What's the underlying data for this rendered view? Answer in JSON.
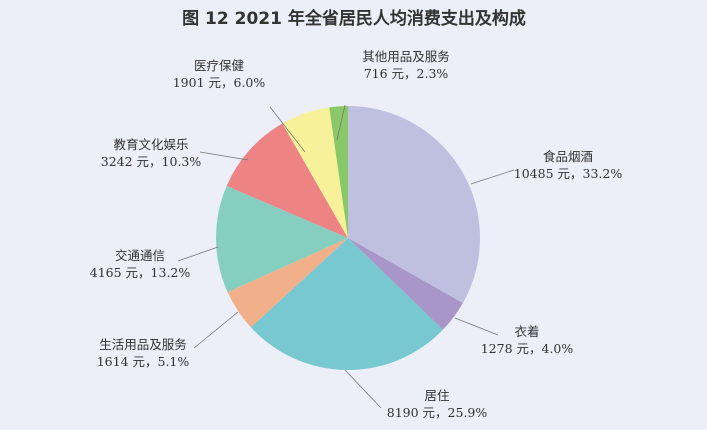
{
  "chart_data": {
    "type": "pie",
    "title": "图 12   2021 年全省居民人均消费支出及构成",
    "unit": "元",
    "start": "top",
    "direction": "clockwise",
    "slices": [
      {
        "name": "食品烟酒",
        "value": 10485,
        "percent": 33.2,
        "label": "10485 元，33.2%",
        "color": "#bfc0e0"
      },
      {
        "name": "衣着",
        "value": 1278,
        "percent": 4.0,
        "label": "1278 元，4.0%",
        "color": "#a896c8"
      },
      {
        "name": "居住",
        "value": 8190,
        "percent": 25.9,
        "label": "8190 元，25.9%",
        "color": "#78c8d2"
      },
      {
        "name": "生活用品及服务",
        "value": 1614,
        "percent": 5.1,
        "label": "1614 元，5.1%",
        "color": "#f2b08a"
      },
      {
        "name": "交通通信",
        "value": 4165,
        "percent": 13.2,
        "label": "4165 元，13.2%",
        "color": "#86cfc0"
      },
      {
        "name": "教育文化娱乐",
        "value": 3242,
        "percent": 10.3,
        "label": "3242 元，10.3%",
        "color": "#ee8383"
      },
      {
        "name": "医疗保健",
        "value": 1901,
        "percent": 6.0,
        "label": "1901 元，6.0%",
        "color": "#f7f29a"
      },
      {
        "name": "其他用品及服务",
        "value": 716,
        "percent": 2.3,
        "label": "716 元，2.3%",
        "color": "#88c868"
      }
    ]
  }
}
